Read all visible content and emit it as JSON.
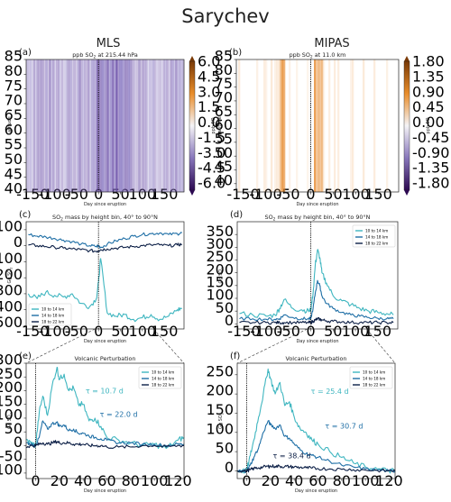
{
  "figure": {
    "title": "Sarychev",
    "columns": [
      "MLS",
      "MIPAS"
    ]
  },
  "colors": {
    "c10to14": "#3fb6c0",
    "c14to18": "#1f6fa6",
    "c18to22": "#0c1f46",
    "eruption_line": "#000000"
  },
  "chart_data": [
    {
      "id": "a",
      "panel_label": "(a)",
      "type": "heatmap",
      "title": "ppb SO2 at 215.44 hPa",
      "xlabel": "Day since eruption",
      "ylabel": "Latitude",
      "xlim": [
        -165,
        195
      ],
      "ylim": [
        40,
        85
      ],
      "xticks": [
        -150,
        -100,
        -50,
        0,
        50,
        100,
        150
      ],
      "yticks": [
        40,
        45,
        50,
        55,
        60,
        65,
        70,
        75,
        80,
        85
      ],
      "colorbar": {
        "label": "ppb SO2",
        "range": [
          -6.0,
          6.0
        ],
        "ticks": [
          "6.0",
          "4.5",
          "3.0",
          "1.5",
          "0.0",
          "-1.5",
          "-3.0",
          "-4.5",
          "-6.0"
        ]
      },
      "pattern": "negative purple values throughout, strongest around days 0 to 60; eruption at day 0 (dotted line)"
    },
    {
      "id": "b",
      "panel_label": "(b)",
      "type": "heatmap",
      "title": "ppb SO2 at 11.0 km",
      "xlabel": "Day since eruption",
      "ylabel": "Latitude",
      "xlim": [
        -165,
        195
      ],
      "ylim": [
        37,
        85
      ],
      "xticks": [
        -150,
        -100,
        -50,
        0,
        50,
        100,
        150
      ],
      "yticks": [
        40,
        45,
        50,
        55,
        60,
        65,
        70,
        75,
        80,
        85
      ],
      "colorbar": {
        "label": "ppb SO2",
        "range": [
          -2.1,
          2.1
        ],
        "ticks": [
          "1.80",
          "1.35",
          "0.90",
          "0.45",
          "0.00",
          "-0.45",
          "-0.90",
          "-1.35",
          "-1.80"
        ]
      },
      "pattern": "mostly near zero, orange positive streaks near day -60 and days 10 to 25"
    },
    {
      "id": "c",
      "panel_label": "(c)",
      "type": "line",
      "title": "SO2 mass by height bin, 40° to 90°N",
      "xlabel": "Day since eruption",
      "ylabel": "Gg SO2",
      "xlim": [
        -165,
        195
      ],
      "ylim": [
        -520,
        150
      ],
      "xticks": [
        -150,
        -100,
        -50,
        0,
        50,
        100,
        150
      ],
      "yticks": [
        100,
        0,
        -100,
        -200,
        -300,
        -400,
        -500
      ],
      "legend": [
        "10 to 14 km",
        "14 to 18 km",
        "18 to 22 km"
      ],
      "x": [
        -160,
        -140,
        -120,
        -100,
        -80,
        -60,
        -40,
        -20,
        -5,
        0,
        5,
        20,
        40,
        60,
        80,
        100,
        120,
        140,
        160,
        180,
        190
      ],
      "series": [
        {
          "name": "10 to 14 km",
          "values": [
            -300,
            -330,
            -290,
            -310,
            -320,
            -300,
            -360,
            -380,
            -330,
            -230,
            -80,
            -420,
            -440,
            -430,
            -460,
            -450,
            -430,
            -460,
            -440,
            -400,
            -390
          ]
        },
        {
          "name": "14 to 18 km",
          "values": [
            70,
            60,
            55,
            45,
            35,
            25,
            10,
            0,
            -5,
            0,
            -10,
            10,
            30,
            45,
            60,
            70,
            75,
            80,
            70,
            75,
            80
          ]
        },
        {
          "name": "18 to 22 km",
          "values": [
            5,
            0,
            -5,
            -10,
            -15,
            -20,
            -25,
            -30,
            -35,
            -30,
            -25,
            -20,
            -15,
            -10,
            -5,
            0,
            5,
            5,
            0,
            5,
            10
          ]
        }
      ]
    },
    {
      "id": "d",
      "panel_label": "(d)",
      "type": "line",
      "title": "SO2 mass by height bin, 40° to 90°N",
      "xlabel": "Day since eruption",
      "ylabel": "Gg SO2",
      "xlim": [
        -165,
        195
      ],
      "ylim": [
        -20,
        400
      ],
      "xticks": [
        -150,
        -100,
        -50,
        0,
        50,
        100,
        150
      ],
      "yticks": [
        0,
        50,
        100,
        150,
        200,
        250,
        300,
        350
      ],
      "legend": [
        "10 to 14 km",
        "14 to 18 km",
        "18 to 22 km"
      ],
      "x": [
        -160,
        -130,
        -100,
        -80,
        -70,
        -60,
        -40,
        -20,
        -5,
        0,
        5,
        10,
        15,
        20,
        25,
        35,
        50,
        70,
        90,
        110,
        130,
        150,
        170,
        185
      ],
      "series": [
        {
          "name": "10 to 14 km",
          "values": [
            40,
            35,
            30,
            35,
            60,
            95,
            60,
            55,
            50,
            55,
            120,
            230,
            290,
            260,
            200,
            160,
            110,
            90,
            75,
            60,
            50,
            45,
            40,
            35
          ]
        },
        {
          "name": "14 to 18 km",
          "values": [
            20,
            20,
            18,
            18,
            20,
            35,
            25,
            20,
            20,
            20,
            60,
            120,
            170,
            150,
            110,
            80,
            60,
            45,
            35,
            30,
            25,
            22,
            20,
            20
          ]
        },
        {
          "name": "18 to 22 km",
          "values": [
            5,
            5,
            5,
            5,
            5,
            5,
            5,
            5,
            5,
            5,
            10,
            15,
            20,
            18,
            15,
            12,
            10,
            8,
            6,
            5,
            5,
            5,
            5,
            5
          ]
        }
      ]
    },
    {
      "id": "e",
      "panel_label": "(e)",
      "type": "line",
      "title": "Volcanic Perturbation",
      "xlabel": "Day since eruption",
      "ylabel": "Gg SO2",
      "xlim": [
        -8,
        125
      ],
      "ylim": [
        -120,
        300
      ],
      "xticks": [
        0,
        20,
        40,
        60,
        80,
        100,
        120
      ],
      "yticks": [
        300,
        250,
        200,
        150,
        100,
        50,
        0,
        -50,
        -100
      ],
      "legend": [
        "10 to 14 km",
        "14 to 18 km",
        "18 to 22 km"
      ],
      "annotations": [
        "τ = 10.7 d",
        "τ = 22.0 d"
      ],
      "x": [
        -8,
        -4,
        0,
        3,
        6,
        10,
        14,
        18,
        20,
        24,
        28,
        32,
        36,
        40,
        45,
        50,
        55,
        60,
        70,
        80,
        90,
        100,
        110,
        120,
        125
      ],
      "series": [
        {
          "name": "10 to 14 km",
          "values": [
            20,
            10,
            0,
            120,
            180,
            110,
            220,
            285,
            240,
            260,
            200,
            210,
            150,
            150,
            90,
            100,
            70,
            30,
            20,
            10,
            0,
            5,
            -10,
            20,
            30
          ]
        },
        {
          "name": "14 to 18 km",
          "values": [
            10,
            5,
            0,
            30,
            90,
            60,
            80,
            85,
            70,
            75,
            55,
            60,
            45,
            45,
            35,
            30,
            25,
            20,
            10,
            10,
            5,
            5,
            0,
            5,
            5
          ]
        },
        {
          "name": "18 to 22 km",
          "values": [
            -5,
            0,
            0,
            5,
            10,
            5,
            10,
            15,
            10,
            10,
            10,
            5,
            5,
            5,
            0,
            0,
            0,
            -5,
            -5,
            -5,
            0,
            0,
            -5,
            0,
            0
          ]
        }
      ]
    },
    {
      "id": "f",
      "panel_label": "(f)",
      "type": "line",
      "title": "Volcanic Perturbation",
      "xlabel": "Day since eruption",
      "ylabel": "Gg SO2",
      "xlim": [
        -8,
        125
      ],
      "ylim": [
        -20,
        280
      ],
      "xticks": [
        0,
        20,
        40,
        60,
        80,
        100,
        120
      ],
      "yticks": [
        0,
        50,
        100,
        150,
        200,
        250
      ],
      "legend": [
        "10 to 14 km",
        "14 to 18 km",
        "18 to 22 km"
      ],
      "annotations": [
        "τ = 25.4 d",
        "τ = 30.7 d",
        "τ = 38.4 d"
      ],
      "x": [
        -8,
        -4,
        0,
        3,
        6,
        10,
        14,
        18,
        20,
        24,
        28,
        32,
        36,
        40,
        45,
        50,
        55,
        60,
        70,
        80,
        90,
        100,
        110,
        120,
        125
      ],
      "series": [
        {
          "name": "10 to 14 km",
          "values": [
            0,
            0,
            0,
            40,
            80,
            140,
            200,
            265,
            240,
            200,
            230,
            170,
            180,
            140,
            110,
            100,
            80,
            70,
            50,
            35,
            20,
            10,
            5,
            0,
            0
          ]
        },
        {
          "name": "14 to 18 km",
          "values": [
            0,
            0,
            0,
            15,
            35,
            60,
            100,
            130,
            120,
            110,
            120,
            90,
            85,
            70,
            55,
            45,
            40,
            35,
            25,
            15,
            10,
            5,
            2,
            0,
            0
          ]
        },
        {
          "name": "18 to 22 km",
          "values": [
            0,
            0,
            0,
            3,
            6,
            8,
            10,
            12,
            12,
            12,
            12,
            11,
            11,
            10,
            9,
            8,
            7,
            6,
            5,
            4,
            3,
            2,
            1,
            0,
            0
          ]
        }
      ]
    }
  ]
}
